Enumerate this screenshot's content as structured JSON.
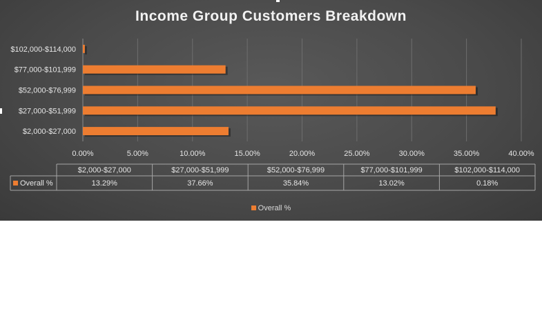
{
  "chart_data": {
    "type": "bar",
    "orientation": "horizontal",
    "title": "Income Group Customers Breakdown",
    "categories": [
      "$2,000-$27,000",
      "$27,000-$51,999",
      "$52,000-$76,999",
      "$77,000-$101,999",
      "$102,000-$114,000"
    ],
    "series": [
      {
        "name": "Overall %",
        "values": [
          13.29,
          37.66,
          35.84,
          13.02,
          0.18
        ],
        "labels": [
          "13.29%",
          "37.66%",
          "35.84%",
          "13.02%",
          "0.18%"
        ],
        "color": "#ed7d31"
      }
    ],
    "xlim": [
      0,
      40
    ],
    "xticks": [
      "0.00%",
      "5.00%",
      "10.00%",
      "15.00%",
      "20.00%",
      "25.00%",
      "30.00%",
      "35.00%",
      "40.00%"
    ],
    "grid": true,
    "legend": "bottom",
    "data_table": true
  }
}
